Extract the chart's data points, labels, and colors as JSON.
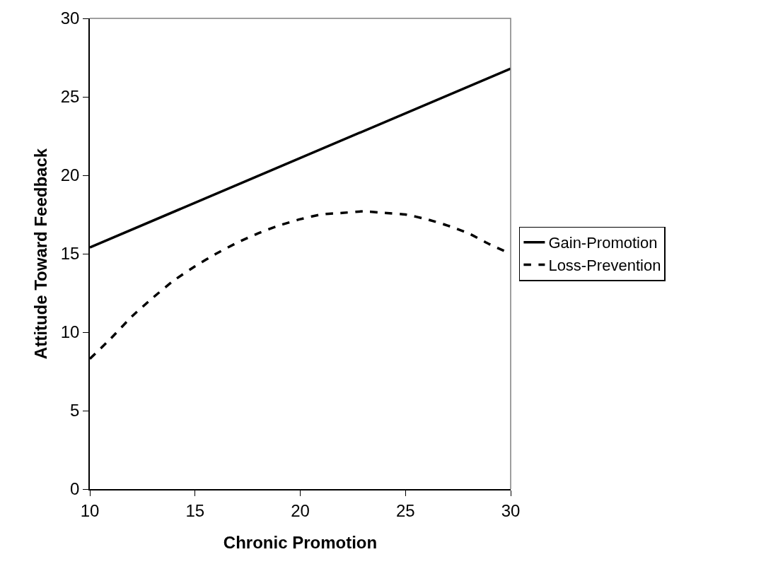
{
  "chart_data": {
    "type": "line",
    "xlabel": "Chronic Promotion",
    "ylabel": "Attitude Toward Feedback",
    "series": [
      {
        "name": "Gain-Promotion",
        "color": "#000000",
        "line_style": "solid",
        "x": [
          10,
          30
        ],
        "values": [
          15.4,
          26.8
        ]
      },
      {
        "name": "Loss-Prevention",
        "color": "#000000",
        "line_style": "dashed",
        "x": [
          10,
          11,
          12,
          13,
          14,
          15,
          16,
          17,
          18,
          19,
          20,
          21,
          22,
          23,
          24,
          25,
          26,
          27,
          28,
          29,
          30
        ],
        "values": [
          8.3,
          9.6,
          11.0,
          12.2,
          13.3,
          14.2,
          15.0,
          15.7,
          16.3,
          16.8,
          17.2,
          17.5,
          17.6,
          17.7,
          17.6,
          17.5,
          17.2,
          16.8,
          16.3,
          15.6,
          15.0
        ]
      }
    ],
    "xlim": [
      10,
      30
    ],
    "xticks": [
      10,
      15,
      20,
      25,
      30
    ],
    "ylim": [
      0,
      30
    ],
    "yticks": [
      0,
      5,
      10,
      15,
      20,
      25,
      30
    ],
    "legend": "right",
    "marker": "none"
  }
}
